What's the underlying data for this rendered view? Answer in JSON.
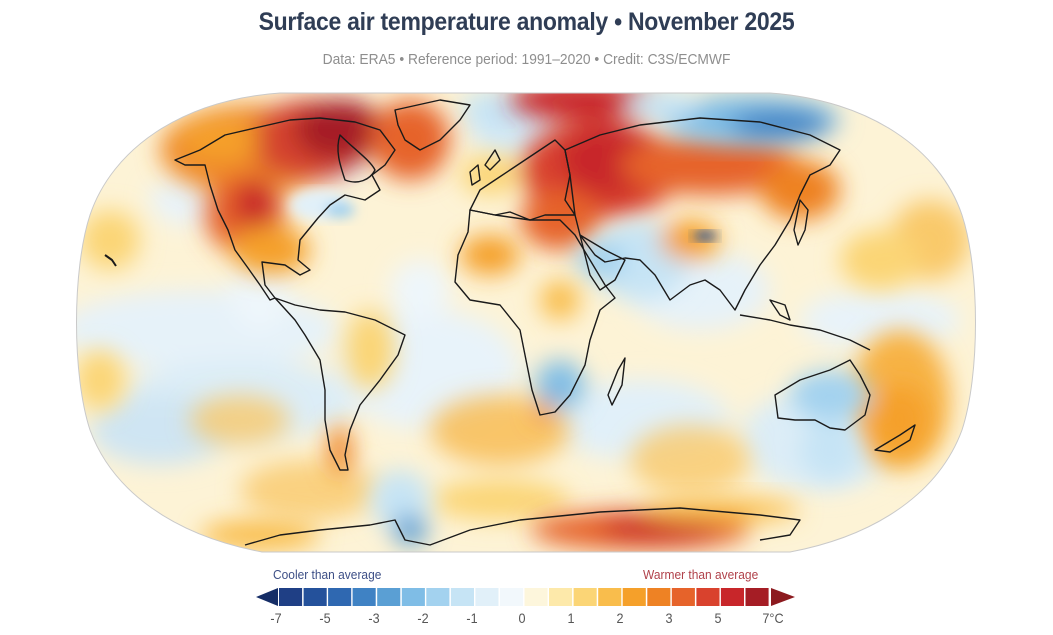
{
  "header": {
    "title": "Surface air temperature anomaly • November 2025",
    "subtitle": "Data: ERA5 • Reference period: 1991–2020 • Credit: C3S/ECMWF"
  },
  "legend": {
    "cooler_label": "Cooler than average",
    "warmer_label": "Warmer than average",
    "ticks": [
      "-7",
      "-5",
      "-3",
      "-2",
      "-1",
      "0",
      "1",
      "2",
      "3",
      "5",
      "7°C"
    ],
    "segment_colors": [
      "#1f3f85",
      "#24519b",
      "#2f68b1",
      "#3f82c4",
      "#5a9fd4",
      "#7fbde6",
      "#a3d2ef",
      "#c6e4f5",
      "#e1f0f9",
      "#f2f8fc",
      "#fdf6dc",
      "#fde9aa",
      "#fbd576",
      "#f9bd4c",
      "#f5a02a",
      "#ee8224",
      "#e6632a",
      "#d9422d",
      "#c8262a",
      "#a51d25"
    ],
    "low_arrow_color": "#152d66",
    "high_arrow_color": "#8c1a1f"
  },
  "chart_data": {
    "type": "heatmap",
    "title": "Surface air temperature anomaly • November 2025",
    "subtitle": "Data: ERA5 • Reference period: 1991–2020 • Credit: C3S/ECMWF",
    "projection": "Robinson (global)",
    "units": "°C",
    "colorbar": {
      "ticks": [
        -7,
        -5,
        -3,
        -2,
        -1,
        0,
        1,
        2,
        3,
        5,
        7
      ],
      "extend": "both",
      "left_label": "Cooler than average",
      "right_label": "Warmer than average"
    },
    "regions": [
      {
        "name": "Canadian Arctic / Baffin",
        "anomaly_approx": 6
      },
      {
        "name": "Western Canada & western USA",
        "anomaly_approx": 3
      },
      {
        "name": "Greenland",
        "anomaly_approx": 3
      },
      {
        "name": "Great Lakes / US Northeast",
        "anomaly_approx": -1
      },
      {
        "name": "Barents / Kara Sea",
        "anomaly_approx": 6
      },
      {
        "name": "European Russia / Western Siberia",
        "anomaly_approx": 5
      },
      {
        "name": "Central Siberia",
        "anomaly_approx": 3
      },
      {
        "name": "Northeastern Siberia",
        "anomaly_approx": -3
      },
      {
        "name": "Tibetan Plateau (local)",
        "anomaly_approx": -5
      },
      {
        "name": "Arabian Peninsula / India",
        "anomaly_approx": -1
      },
      {
        "name": "Northwest Africa",
        "anomaly_approx": 2
      },
      {
        "name": "Southern Africa",
        "anomaly_approx": -2
      },
      {
        "name": "Australia",
        "anomaly_approx": -1
      },
      {
        "name": "New Zealand / Tasman Sea",
        "anomaly_approx": 2
      },
      {
        "name": "Antarctica (East, Indian sector)",
        "anomaly_approx": 5
      },
      {
        "name": "Southern Patagonia",
        "anomaly_approx": 2
      },
      {
        "name": "Antarctic Peninsula",
        "anomaly_approx": -2
      },
      {
        "name": "Tropical oceans",
        "anomaly_approx": 0.5
      }
    ]
  }
}
